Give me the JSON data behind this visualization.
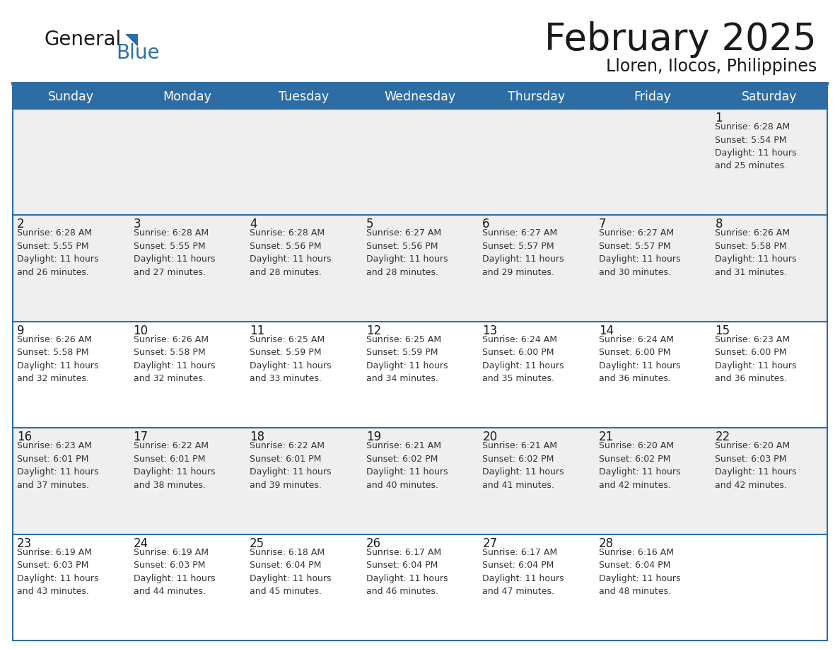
{
  "title": "February 2025",
  "subtitle": "Lloren, Ilocos, Philippines",
  "header_bg": "#2E6DA4",
  "header_text": "#FFFFFF",
  "cell_bg_odd": "#EFEFEF",
  "cell_bg_even": "#FFFFFF",
  "grid_line_color": "#2E6DA4",
  "day_num_color": "#1a1a1a",
  "info_text_color": "#333333",
  "days_of_week": [
    "Sunday",
    "Monday",
    "Tuesday",
    "Wednesday",
    "Thursday",
    "Friday",
    "Saturday"
  ],
  "logo_text1": "General",
  "logo_text2": "Blue",
  "logo_color1": "#1a1a1a",
  "logo_color2": "#2E6DA4",
  "title_color": "#1a1a1a",
  "weeks": [
    [
      {
        "day": null,
        "info": null
      },
      {
        "day": null,
        "info": null
      },
      {
        "day": null,
        "info": null
      },
      {
        "day": null,
        "info": null
      },
      {
        "day": null,
        "info": null
      },
      {
        "day": null,
        "info": null
      },
      {
        "day": 1,
        "info": "Sunrise: 6:28 AM\nSunset: 5:54 PM\nDaylight: 11 hours\nand 25 minutes."
      }
    ],
    [
      {
        "day": 2,
        "info": "Sunrise: 6:28 AM\nSunset: 5:55 PM\nDaylight: 11 hours\nand 26 minutes."
      },
      {
        "day": 3,
        "info": "Sunrise: 6:28 AM\nSunset: 5:55 PM\nDaylight: 11 hours\nand 27 minutes."
      },
      {
        "day": 4,
        "info": "Sunrise: 6:28 AM\nSunset: 5:56 PM\nDaylight: 11 hours\nand 28 minutes."
      },
      {
        "day": 5,
        "info": "Sunrise: 6:27 AM\nSunset: 5:56 PM\nDaylight: 11 hours\nand 28 minutes."
      },
      {
        "day": 6,
        "info": "Sunrise: 6:27 AM\nSunset: 5:57 PM\nDaylight: 11 hours\nand 29 minutes."
      },
      {
        "day": 7,
        "info": "Sunrise: 6:27 AM\nSunset: 5:57 PM\nDaylight: 11 hours\nand 30 minutes."
      },
      {
        "day": 8,
        "info": "Sunrise: 6:26 AM\nSunset: 5:58 PM\nDaylight: 11 hours\nand 31 minutes."
      }
    ],
    [
      {
        "day": 9,
        "info": "Sunrise: 6:26 AM\nSunset: 5:58 PM\nDaylight: 11 hours\nand 32 minutes."
      },
      {
        "day": 10,
        "info": "Sunrise: 6:26 AM\nSunset: 5:58 PM\nDaylight: 11 hours\nand 32 minutes."
      },
      {
        "day": 11,
        "info": "Sunrise: 6:25 AM\nSunset: 5:59 PM\nDaylight: 11 hours\nand 33 minutes."
      },
      {
        "day": 12,
        "info": "Sunrise: 6:25 AM\nSunset: 5:59 PM\nDaylight: 11 hours\nand 34 minutes."
      },
      {
        "day": 13,
        "info": "Sunrise: 6:24 AM\nSunset: 6:00 PM\nDaylight: 11 hours\nand 35 minutes."
      },
      {
        "day": 14,
        "info": "Sunrise: 6:24 AM\nSunset: 6:00 PM\nDaylight: 11 hours\nand 36 minutes."
      },
      {
        "day": 15,
        "info": "Sunrise: 6:23 AM\nSunset: 6:00 PM\nDaylight: 11 hours\nand 36 minutes."
      }
    ],
    [
      {
        "day": 16,
        "info": "Sunrise: 6:23 AM\nSunset: 6:01 PM\nDaylight: 11 hours\nand 37 minutes."
      },
      {
        "day": 17,
        "info": "Sunrise: 6:22 AM\nSunset: 6:01 PM\nDaylight: 11 hours\nand 38 minutes."
      },
      {
        "day": 18,
        "info": "Sunrise: 6:22 AM\nSunset: 6:01 PM\nDaylight: 11 hours\nand 39 minutes."
      },
      {
        "day": 19,
        "info": "Sunrise: 6:21 AM\nSunset: 6:02 PM\nDaylight: 11 hours\nand 40 minutes."
      },
      {
        "day": 20,
        "info": "Sunrise: 6:21 AM\nSunset: 6:02 PM\nDaylight: 11 hours\nand 41 minutes."
      },
      {
        "day": 21,
        "info": "Sunrise: 6:20 AM\nSunset: 6:02 PM\nDaylight: 11 hours\nand 42 minutes."
      },
      {
        "day": 22,
        "info": "Sunrise: 6:20 AM\nSunset: 6:03 PM\nDaylight: 11 hours\nand 42 minutes."
      }
    ],
    [
      {
        "day": 23,
        "info": "Sunrise: 6:19 AM\nSunset: 6:03 PM\nDaylight: 11 hours\nand 43 minutes."
      },
      {
        "day": 24,
        "info": "Sunrise: 6:19 AM\nSunset: 6:03 PM\nDaylight: 11 hours\nand 44 minutes."
      },
      {
        "day": 25,
        "info": "Sunrise: 6:18 AM\nSunset: 6:04 PM\nDaylight: 11 hours\nand 45 minutes."
      },
      {
        "day": 26,
        "info": "Sunrise: 6:17 AM\nSunset: 6:04 PM\nDaylight: 11 hours\nand 46 minutes."
      },
      {
        "day": 27,
        "info": "Sunrise: 6:17 AM\nSunset: 6:04 PM\nDaylight: 11 hours\nand 47 minutes."
      },
      {
        "day": 28,
        "info": "Sunrise: 6:16 AM\nSunset: 6:04 PM\nDaylight: 11 hours\nand 48 minutes."
      },
      {
        "day": null,
        "info": null
      }
    ]
  ],
  "week_bg_colors": [
    "#EFEFEF",
    "#EFEFEF",
    "#FFFFFF",
    "#EFEFEF",
    "#FFFFFF"
  ]
}
